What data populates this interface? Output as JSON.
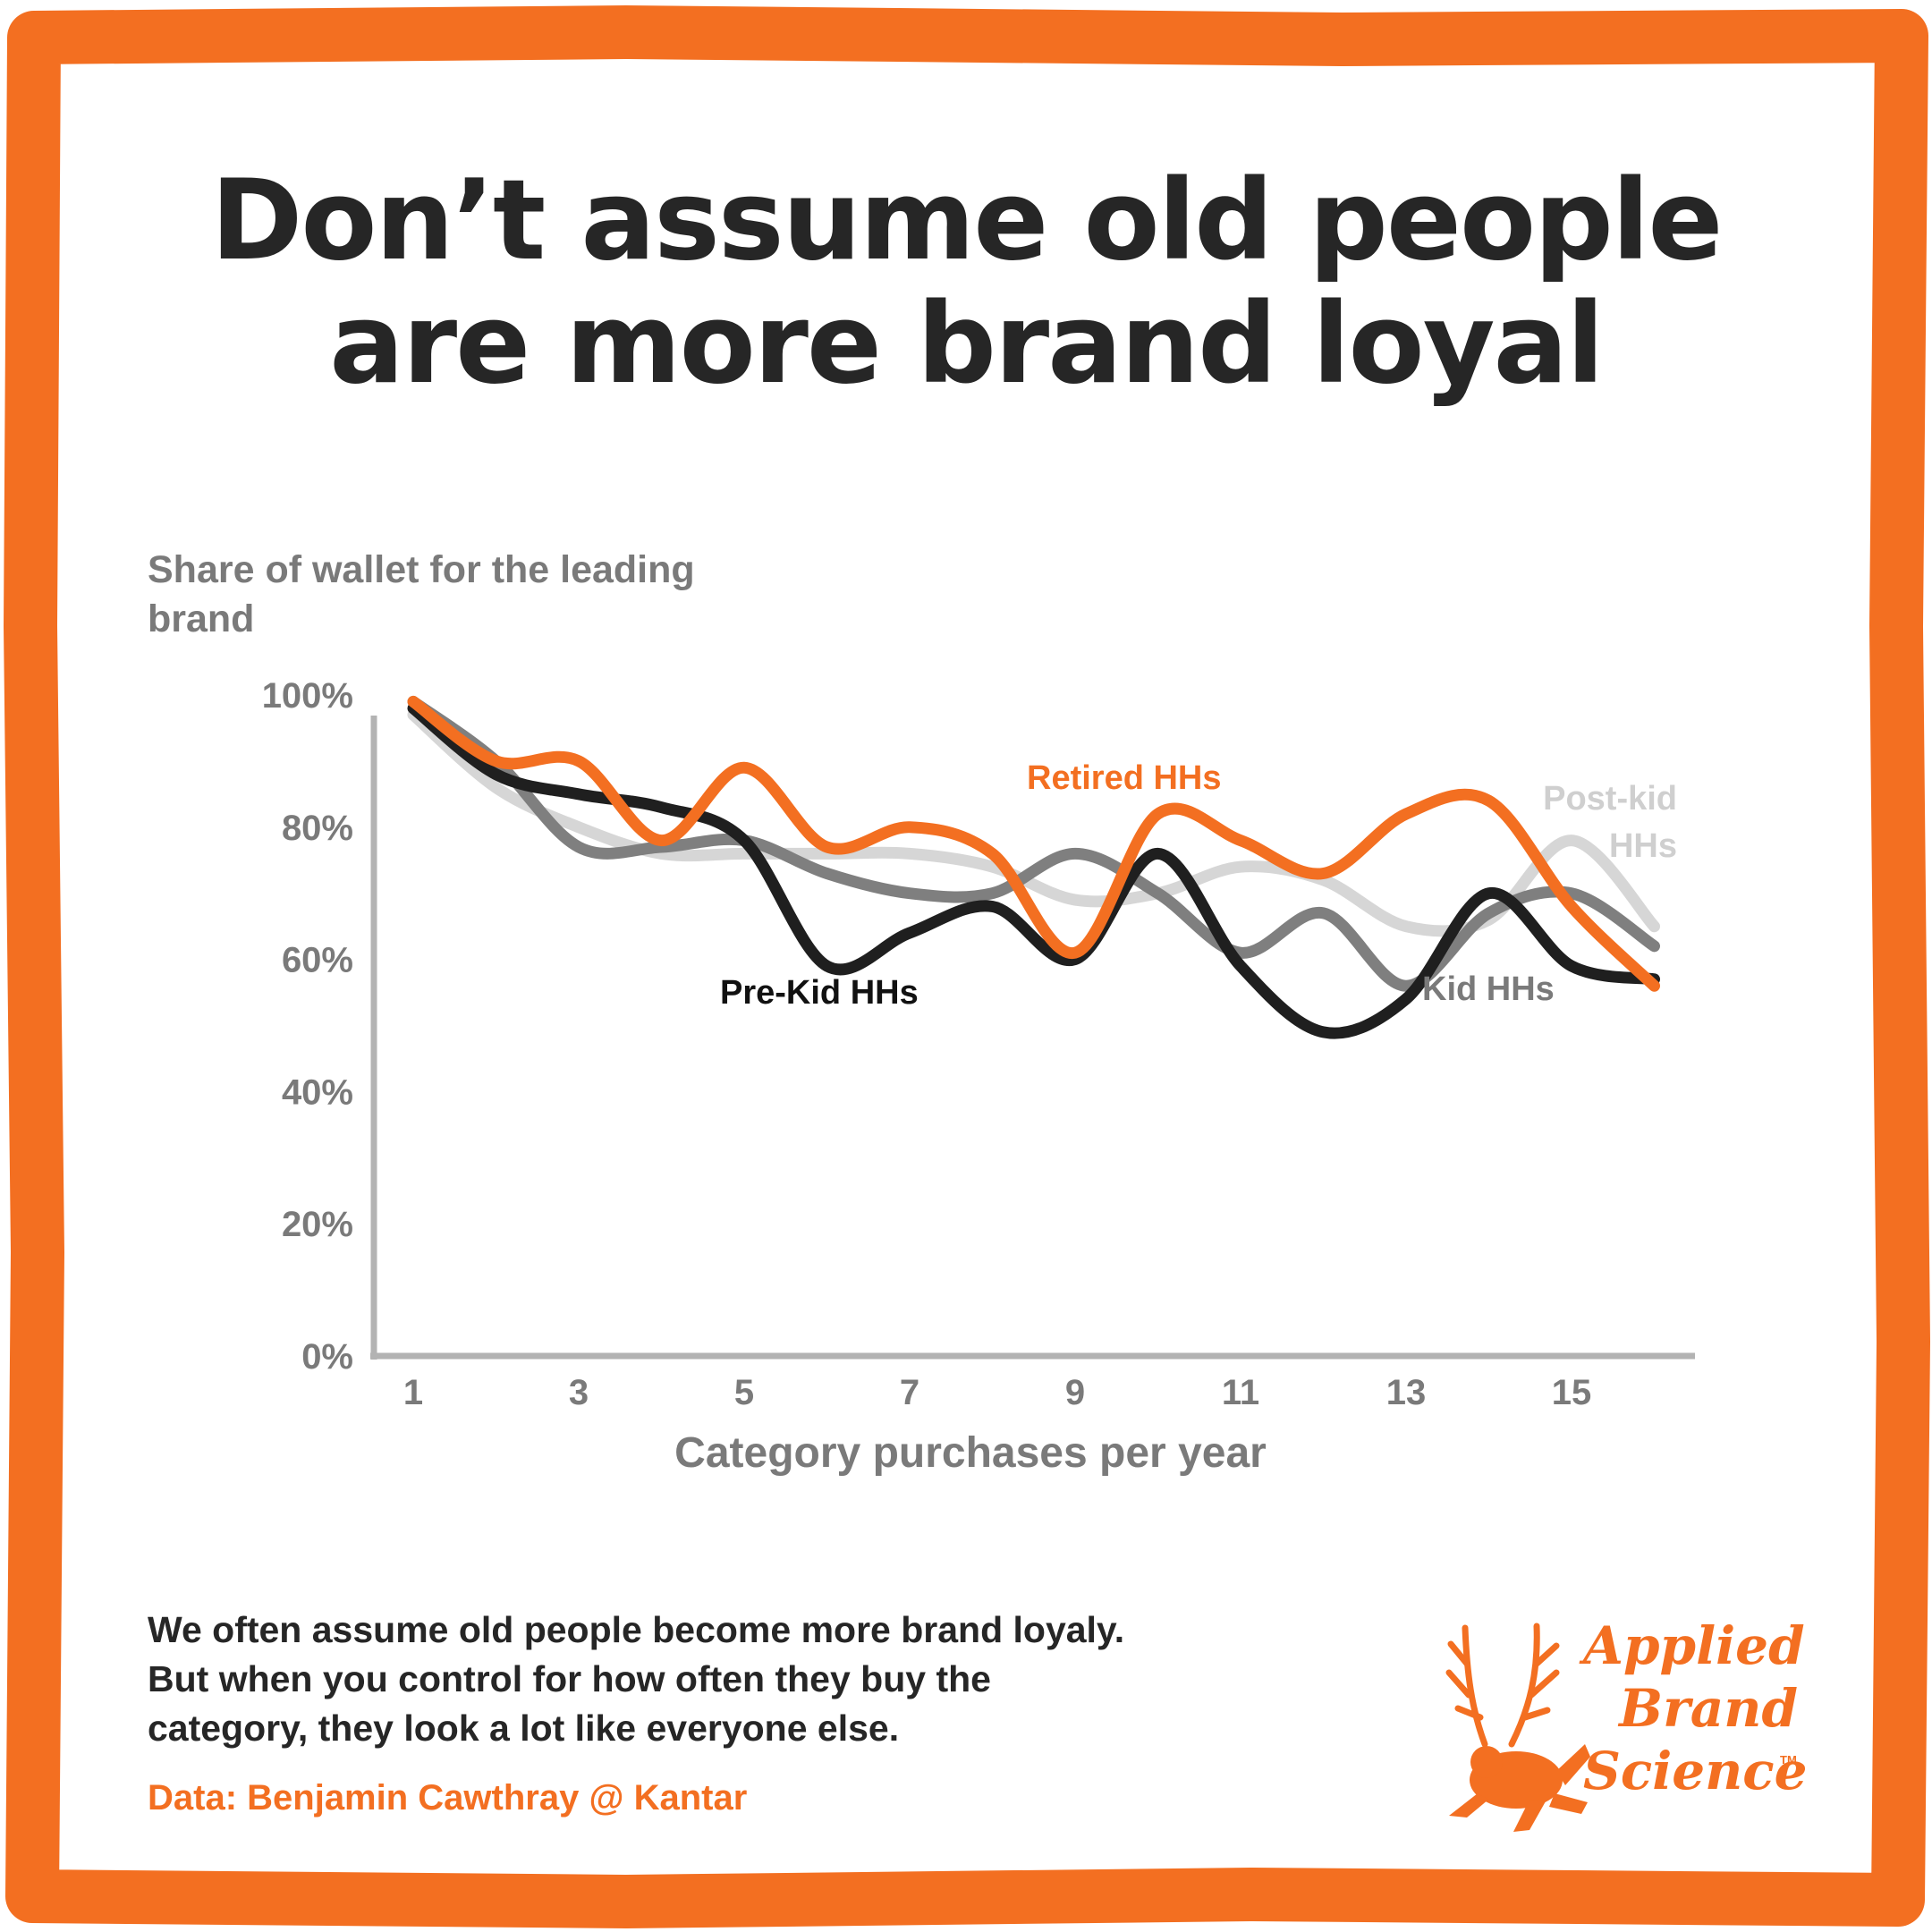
{
  "title_lines": [
    "Don’t assume old people",
    "are more brand loyal"
  ],
  "note": "We often assume old people become more brand loyaly. But when you control for how often they buy the category, they look a lot like everyone else.",
  "source": "Data: Benjamin Cawthray @ Kantar",
  "logo": {
    "lines": [
      "Applied",
      "Brand",
      "Science"
    ],
    "tm": "TM"
  },
  "colors": {
    "accent": "#f36f21",
    "text": "#262626",
    "gray": "#7a7a7a",
    "pre_kid": "#1f1f1f",
    "kid": "#7f7f7f",
    "post_kid": "#d6d6d6",
    "retired": "#f36f21"
  },
  "chart_data": {
    "type": "line",
    "ylabel": "Share of wallet for the leading brand",
    "xlabel": "Category purchases per year",
    "x": [
      1,
      2,
      3,
      4,
      5,
      6,
      7,
      8,
      9,
      10,
      11,
      12,
      13,
      14,
      15,
      16
    ],
    "x_ticks": [
      "1",
      "3",
      "5",
      "7",
      "9",
      "11",
      "13",
      "15"
    ],
    "y_ticks": [
      "0%",
      "20%",
      "40%",
      "60%",
      "80%",
      "100%"
    ],
    "ylim": [
      0,
      100
    ],
    "xlim": [
      1,
      16
    ],
    "grid": false,
    "series": [
      {
        "name": "Post-kid HHs",
        "label_lines": [
          "Post-kid",
          "HHs"
        ],
        "color": "#d6d6d6",
        "values": [
          97,
          86,
          80,
          76,
          76,
          76,
          76,
          74,
          69,
          70,
          74,
          72,
          65,
          66,
          78,
          65
        ]
      },
      {
        "name": "Kid HHs",
        "label_lines": [
          "Kid HHs"
        ],
        "color": "#7f7f7f",
        "values": [
          99,
          90,
          77,
          77,
          78,
          73,
          70,
          70,
          76,
          70,
          61,
          67,
          56,
          67,
          70,
          62
        ]
      },
      {
        "name": "Pre-Kid HHs",
        "label_lines": [
          "Pre-Kid HHs"
        ],
        "color": "#1f1f1f",
        "values": [
          98,
          88,
          85,
          83,
          78,
          59,
          64,
          68,
          60,
          76,
          59,
          49,
          54,
          70,
          59,
          57
        ]
      },
      {
        "name": "Retired HHs",
        "label_lines": [
          "Retired HHs"
        ],
        "color": "#f36f21",
        "values": [
          99,
          90,
          90,
          78,
          89,
          77,
          80,
          76,
          61,
          82,
          78,
          73,
          82,
          84,
          68,
          56
        ]
      }
    ]
  }
}
